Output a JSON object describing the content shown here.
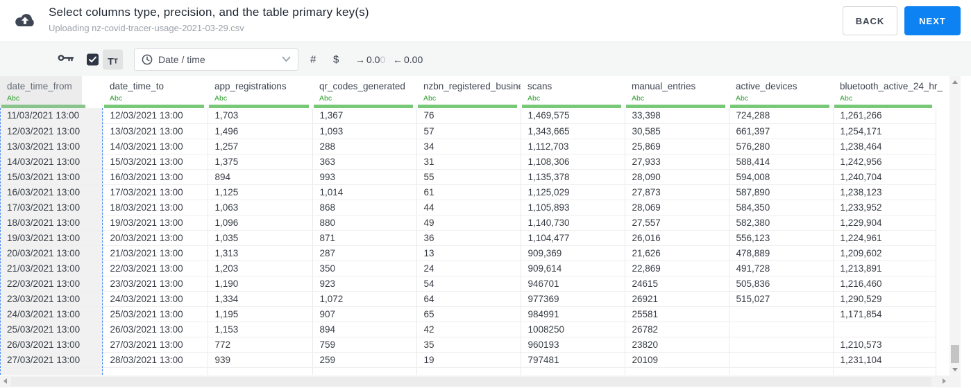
{
  "header": {
    "title": "Select columns type, precision, and the table primary key(s)",
    "subtitle": "Uploading nz-covid-tracer-usage-2021-03-29.csv",
    "back_label": "BACK",
    "next_label": "NEXT"
  },
  "toolbar": {
    "primary_key_checked": true,
    "text_format_large": "T",
    "text_format_small": "T",
    "type_selector": {
      "icon": "clock",
      "value": "Date / time"
    },
    "number_label": "#",
    "currency_label": "$",
    "decimal_decrease": {
      "arrow": "→",
      "value": "0.0",
      "faded": "0"
    },
    "decimal_increase": {
      "arrow": "←",
      "value": "0.00"
    }
  },
  "table": {
    "type_badge": "Abc",
    "selected_column": "date_time_from",
    "columns": [
      "date_time_from",
      "date_time_to",
      "app_registrations",
      "qr_codes_generated",
      "nzbn_registered_busine",
      "scans",
      "manual_entries",
      "active_devices",
      "bluetooth_active_24_hr_"
    ],
    "rows": [
      [
        "11/03/2021 13:00",
        "12/03/2021 13:00",
        "1,703",
        "1,367",
        "76",
        "1,469,575",
        "33,398",
        "724,288",
        "1,261,266"
      ],
      [
        "12/03/2021 13:00",
        "13/03/2021 13:00",
        "1,496",
        "1,093",
        "57",
        "1,343,665",
        "30,585",
        "661,397",
        "1,254,171"
      ],
      [
        "13/03/2021 13:00",
        "14/03/2021 13:00",
        "1,257",
        "288",
        "34",
        "1,112,703",
        "25,869",
        "576,280",
        "1,238,464"
      ],
      [
        "14/03/2021 13:00",
        "15/03/2021 13:00",
        "1,375",
        "363",
        "31",
        "1,108,306",
        "27,933",
        "588,414",
        "1,242,956"
      ],
      [
        "15/03/2021 13:00",
        "16/03/2021 13:00",
        "894",
        "993",
        "55",
        "1,135,378",
        "28,090",
        "594,008",
        "1,240,704"
      ],
      [
        "16/03/2021 13:00",
        "17/03/2021 13:00",
        "1,125",
        "1,014",
        "61",
        "1,125,029",
        "27,873",
        "587,890",
        "1,238,123"
      ],
      [
        "17/03/2021 13:00",
        "18/03/2021 13:00",
        "1,063",
        "868",
        "44",
        "1,105,893",
        "28,069",
        "584,350",
        "1,233,952"
      ],
      [
        "18/03/2021 13:00",
        "19/03/2021 13:00",
        "1,096",
        "880",
        "49",
        "1,140,730",
        "27,557",
        "582,380",
        "1,229,904"
      ],
      [
        "19/03/2021 13:00",
        "20/03/2021 13:00",
        "1,035",
        "871",
        "36",
        "1,104,477",
        "26,016",
        "556,123",
        "1,224,961"
      ],
      [
        "20/03/2021 13:00",
        "21/03/2021 13:00",
        "1,313",
        "287",
        "13",
        "909,369",
        "21,626",
        "478,889",
        "1,209,602"
      ],
      [
        "21/03/2021 13:00",
        "22/03/2021 13:00",
        "1,203",
        "350",
        "24",
        "909,614",
        "22,869",
        "491,728",
        "1,213,891"
      ],
      [
        "22/03/2021 13:00",
        "23/03/2021 13:00",
        "1,190",
        "923",
        "54",
        "946701",
        "24615",
        "505,836",
        "1,216,460"
      ],
      [
        "23/03/2021 13:00",
        "24/03/2021 13:00",
        "1,334",
        "1,072",
        "64",
        "977369",
        "26921",
        "515,027",
        "1,290,529"
      ],
      [
        "24/03/2021 13:00",
        "25/03/2021 13:00",
        "1,195",
        "907",
        "65",
        "984991",
        "25581",
        "",
        "1,171,854"
      ],
      [
        "25/03/2021 13:00",
        "26/03/2021 13:00",
        "1,153",
        "894",
        "42",
        "1008250",
        "26782",
        "",
        ""
      ],
      [
        "26/03/2021 13:00",
        "27/03/2021 13:00",
        "772",
        "759",
        "35",
        "960193",
        "23820",
        "",
        "1,210,573"
      ],
      [
        "27/03/2021 13:00",
        "28/03/2021 13:00",
        "939",
        "259",
        "19",
        "797481",
        "20109",
        "",
        "1,231,104"
      ]
    ]
  },
  "colors": {
    "accent_blue": "#0d82f2",
    "type_green": "#2fa02f",
    "header_bar_green": "#77c877",
    "selection_dash_blue": "#4b8df8"
  }
}
